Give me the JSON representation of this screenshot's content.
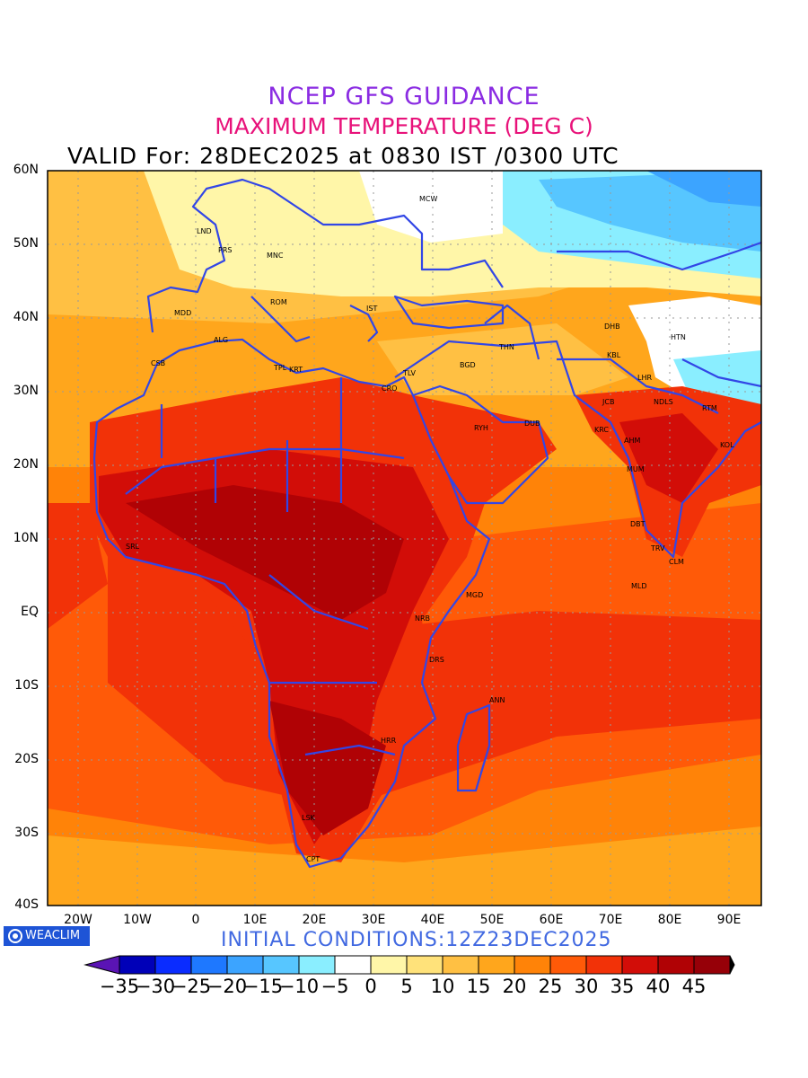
{
  "header": {
    "line1": "NCEP GFS GUIDANCE",
    "line2": "MAXIMUM TEMPERATURE (DEG C)",
    "line3": "VALID For: 28DEC2025 at 0830 IST /0300 UTC"
  },
  "footer": {
    "initial_conditions": "INITIAL CONDITIONS:12Z23DEC2025",
    "logo_text": "WEACLIM"
  },
  "axes": {
    "lat_labels": [
      "60N",
      "50N",
      "40N",
      "30N",
      "20N",
      "10N",
      "EQ",
      "10S",
      "20S",
      "30S",
      "40S"
    ],
    "lon_labels": [
      "20W",
      "10W",
      "0",
      "10E",
      "20E",
      "30E",
      "40E",
      "50E",
      "60E",
      "70E",
      "80E",
      "90E"
    ]
  },
  "colorbar": {
    "labels": [
      "−35",
      "−30",
      "−25",
      "−20",
      "−15",
      "−10",
      "−5",
      "0",
      "5",
      "10",
      "15",
      "20",
      "25",
      "30",
      "35",
      "40",
      "45"
    ],
    "colors": [
      "#0000b8",
      "#0a2cff",
      "#1e78ff",
      "#3ca4ff",
      "#57c6ff",
      "#8aeeff",
      "#ffffff",
      "#fff6a8",
      "#ffe27a",
      "#ffc043",
      "#ffa61c",
      "#ff8308",
      "#ff5a08",
      "#f23208",
      "#d20d08",
      "#b00205",
      "#960008"
    ],
    "below_color": "#5a14b4",
    "above_color": "#000000"
  },
  "cities": [
    {
      "code": "MCW"
    },
    {
      "code": "LND"
    },
    {
      "code": "PRS"
    },
    {
      "code": "MNC"
    },
    {
      "code": "ROM"
    },
    {
      "code": "MDD"
    },
    {
      "code": "IST"
    },
    {
      "code": "ALG"
    },
    {
      "code": "CSB"
    },
    {
      "code": "TPL"
    },
    {
      "code": "KRT"
    },
    {
      "code": "CRO"
    },
    {
      "code": "TLV"
    },
    {
      "code": "BGD"
    },
    {
      "code": "THN"
    },
    {
      "code": "DHB"
    },
    {
      "code": "HTN"
    },
    {
      "code": "KBL"
    },
    {
      "code": "LHR"
    },
    {
      "code": "JCB"
    },
    {
      "code": "NDLS"
    },
    {
      "code": "RTM"
    },
    {
      "code": "KRC"
    },
    {
      "code": "RYH"
    },
    {
      "code": "DUB"
    },
    {
      "code": "AHM"
    },
    {
      "code": "KOL"
    },
    {
      "code": "MUM"
    },
    {
      "code": "DBT"
    },
    {
      "code": "TRV"
    },
    {
      "code": "CLM"
    },
    {
      "code": "SRL"
    },
    {
      "code": "MGD"
    },
    {
      "code": "MLD"
    },
    {
      "code": "NRB"
    },
    {
      "code": "DRS"
    },
    {
      "code": "ANN"
    },
    {
      "code": "HRR"
    },
    {
      "code": "LSK"
    },
    {
      "code": "CPT"
    }
  ]
}
